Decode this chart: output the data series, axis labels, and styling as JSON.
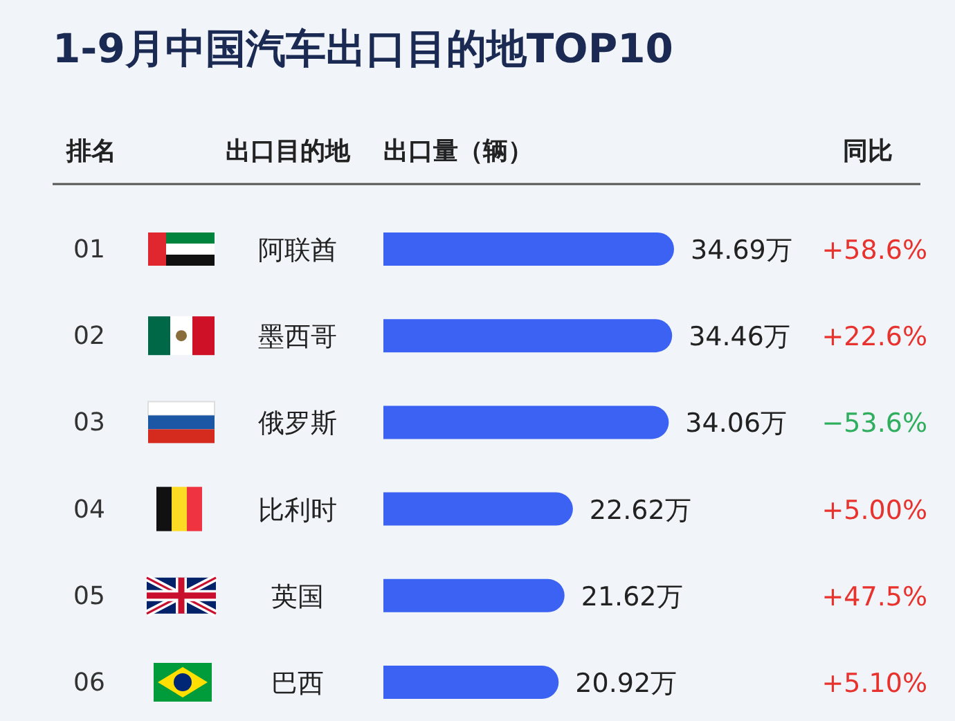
{
  "chart_data": {
    "type": "bar",
    "orientation": "horizontal",
    "title": "1-9月中国汽车出口目的地TOP10",
    "ylabel": "出口目的地",
    "xlabel": "出口量（辆）",
    "categories": [
      "阿联酋",
      "墨西哥",
      "俄罗斯",
      "比利时",
      "英国",
      "巴西"
    ],
    "values": [
      34.69,
      34.46,
      34.06,
      22.62,
      21.62,
      20.92
    ],
    "value_labels": [
      "34.69万",
      "34.46万",
      "34.06万",
      "22.62万",
      "21.62万",
      "20.92万"
    ],
    "color": "#3b62f2",
    "annotations": [
      "排名",
      "同比",
      "01",
      "02",
      "03",
      "04",
      "05",
      "06",
      "+58.6%",
      "+22.6%",
      "−53.6%",
      "+5.00%",
      "+47.5%",
      "+5.10%"
    ]
  }
}
